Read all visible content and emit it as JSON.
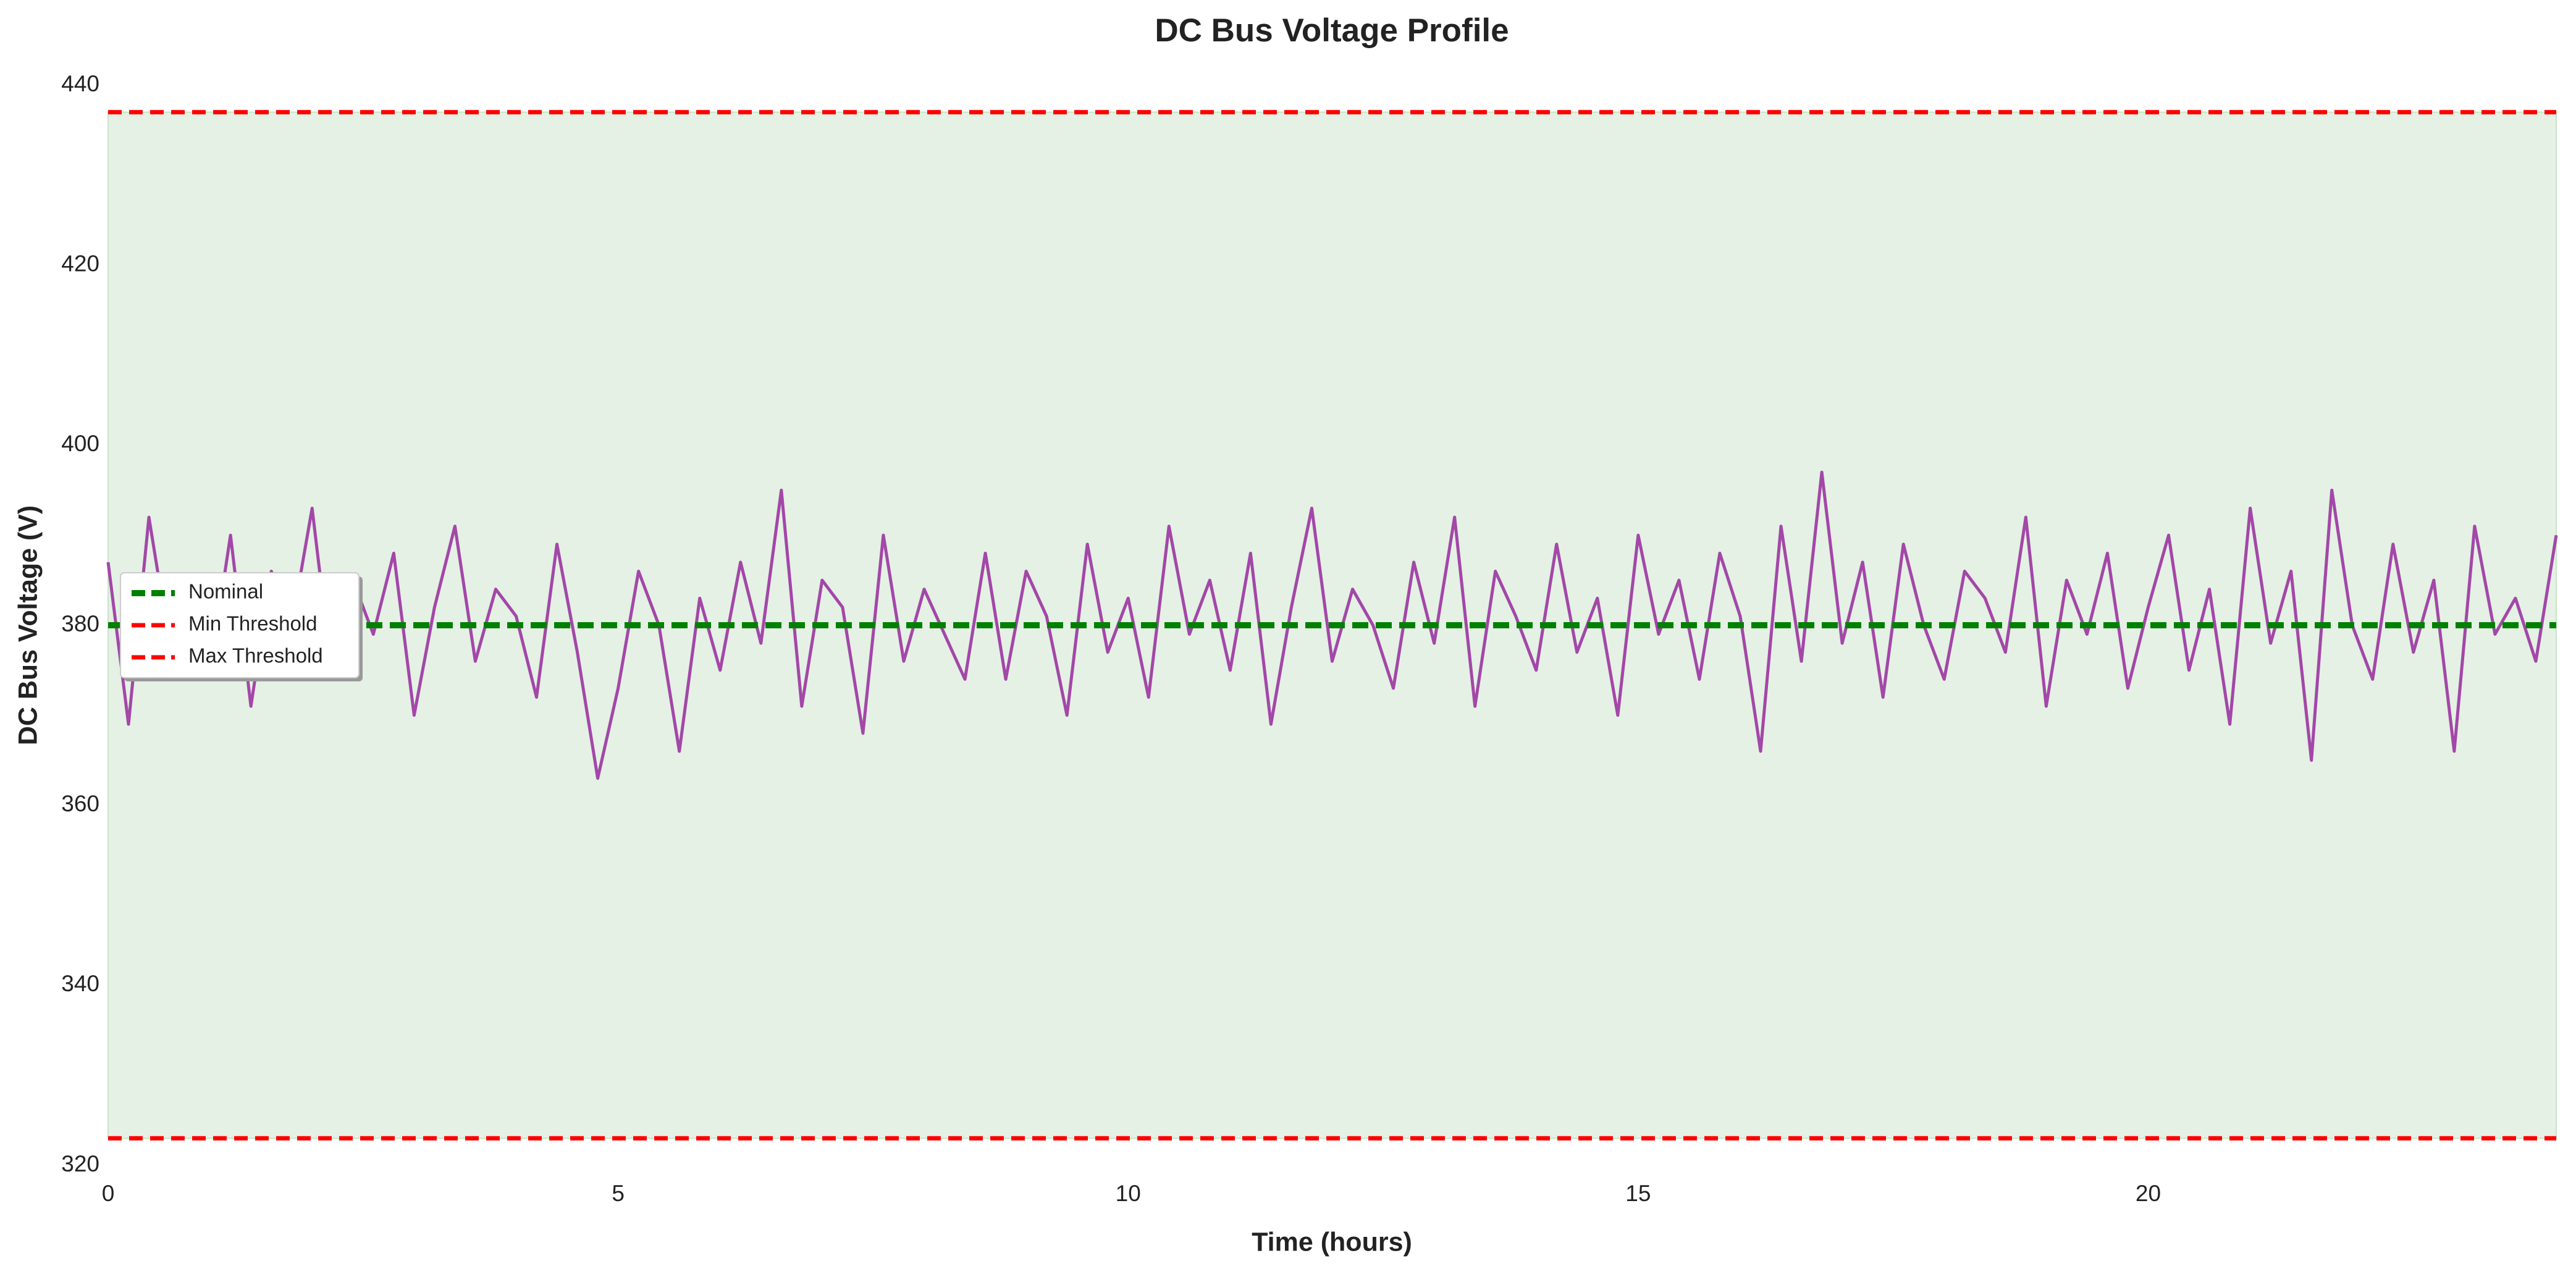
{
  "chart_data": {
    "type": "line",
    "title": "DC Bus Voltage Profile",
    "x_label": "Time (hours)",
    "y_label": "DC Bus Voltage (V)",
    "x": [
      0,
      0.2,
      0.4,
      0.6,
      0.8,
      1,
      1.2,
      1.4,
      1.6,
      1.8,
      2,
      2.2,
      2.4,
      2.6,
      2.8,
      3,
      3.2,
      3.4,
      3.6,
      3.8,
      4,
      4.2,
      4.4,
      4.6,
      4.8,
      5,
      5.2,
      5.4,
      5.6,
      5.8,
      6,
      6.2,
      6.4,
      6.6,
      6.8,
      7,
      7.2,
      7.4,
      7.6,
      7.8,
      8,
      8.2,
      8.4,
      8.6,
      8.8,
      9,
      9.2,
      9.4,
      9.6,
      9.8,
      10,
      10.2,
      10.4,
      10.6,
      10.8,
      11,
      11.2,
      11.4,
      11.6,
      11.8,
      12,
      12.2,
      12.4,
      12.6,
      12.8,
      13,
      13.2,
      13.4,
      13.6,
      13.8,
      14,
      14.2,
      14.4,
      14.6,
      14.8,
      15,
      15.2,
      15.4,
      15.6,
      15.8,
      16,
      16.2,
      16.4,
      16.6,
      16.8,
      17,
      17.2,
      17.4,
      17.6,
      17.8,
      18,
      18.2,
      18.4,
      18.6,
      18.8,
      19,
      19.2,
      19.4,
      19.6,
      19.8,
      20,
      20.2,
      20.4,
      20.6,
      20.8,
      21,
      21.2,
      21.4,
      21.6,
      21.8,
      22,
      22.2,
      22.4,
      22.6,
      22.8,
      23,
      23.2,
      23.4,
      23.6,
      23.8,
      24
    ],
    "values": [
      387,
      369,
      392,
      378,
      383,
      375,
      390,
      371,
      386,
      380,
      393,
      374,
      385,
      379,
      388,
      370,
      382,
      391,
      376,
      384,
      381,
      372,
      389,
      377,
      363,
      373,
      386,
      380,
      366,
      383,
      375,
      387,
      378,
      395,
      371,
      385,
      382,
      368,
      390,
      376,
      384,
      379,
      374,
      388,
      374,
      386,
      381,
      370,
      389,
      377,
      383,
      372,
      391,
      379,
      385,
      375,
      388,
      369,
      382,
      393,
      376,
      384,
      380,
      373,
      387,
      378,
      392,
      371,
      386,
      381,
      375,
      389,
      377,
      383,
      370,
      390,
      379,
      385,
      374,
      388,
      381,
      366,
      391,
      376,
      397,
      378,
      387,
      372,
      389,
      380,
      374,
      386,
      383,
      377,
      392,
      371,
      385,
      379,
      388,
      373,
      382,
      390,
      375,
      384,
      369,
      393,
      378,
      386,
      365,
      395,
      380,
      374,
      389,
      377,
      385,
      366,
      391,
      379,
      383,
      376,
      390
    ],
    "color": "#a347a8",
    "reference_lines": [
      {
        "name": "Nominal",
        "value": 380,
        "color": "#008000"
      },
      {
        "name": "Min Threshold",
        "value": 323,
        "color": "#ff0000"
      },
      {
        "name": "Max Threshold",
        "value": 437,
        "color": "#ff0000"
      }
    ],
    "band_color": "#e4f1e4",
    "xlim": [
      0,
      24
    ],
    "xticks": [
      0,
      5,
      10,
      15,
      20
    ],
    "ylim": [
      320,
      440
    ],
    "yticks": [
      320,
      340,
      360,
      380,
      400,
      420,
      440
    ],
    "grid": false,
    "legend": "center left"
  }
}
